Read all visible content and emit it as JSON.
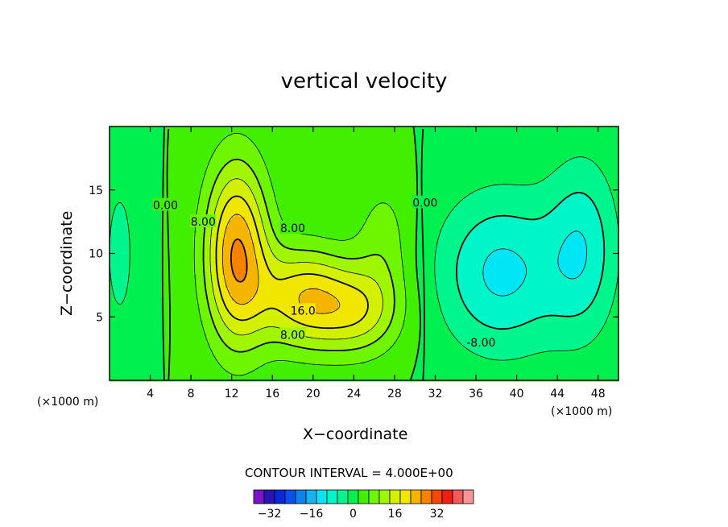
{
  "chart_data": {
    "type": "heatmap",
    "title": "vertical velocity",
    "xlabel": "X−coordinate",
    "ylabel": "Z−coordinate",
    "x_unit": "(×1000 m)",
    "x_unit_right": "(×1000 m)",
    "xlim": [
      0,
      50
    ],
    "ylim": [
      0,
      20
    ],
    "x_ticks": [
      4,
      8,
      12,
      16,
      20,
      24,
      28,
      32,
      36,
      40,
      44,
      48
    ],
    "y_ticks": [
      5,
      10,
      15
    ],
    "contour_interval_label": "CONTOUR INTERVAL = 4.000E+00",
    "contour_labels": [
      {
        "text": "0.00",
        "x": 5.5,
        "z": 13.8
      },
      {
        "text": "8.00",
        "x": 9.2,
        "z": 12.5
      },
      {
        "text": "8.00",
        "x": 18.0,
        "z": 12.0
      },
      {
        "text": "16.0",
        "x": 19.0,
        "z": 5.5
      },
      {
        "text": "8.00",
        "x": 18.0,
        "z": 3.6
      },
      {
        "text": "0.00",
        "x": 31.0,
        "z": 14.0
      },
      {
        "text": "-8.00",
        "x": 36.5,
        "z": 3.0
      }
    ],
    "field_features": [
      {
        "x": 12.5,
        "z": 10.0,
        "sx": 2.2,
        "sz": 5.0,
        "amp": 24
      },
      {
        "x": 19.0,
        "z": 6.5,
        "sx": 3.2,
        "sz": 2.8,
        "amp": 18
      },
      {
        "x": 24.5,
        "z": 5.5,
        "sx": 3.0,
        "sz": 2.5,
        "amp": 13
      },
      {
        "x": 27.0,
        "z": 11.0,
        "sx": 2.0,
        "sz": 3.5,
        "amp": 6
      },
      {
        "x": 38.5,
        "z": 8.5,
        "sx": 4.5,
        "sz": 4.5,
        "amp": -13
      },
      {
        "x": 46.5,
        "z": 10.5,
        "sx": 2.5,
        "sz": 5.0,
        "amp": -10
      },
      {
        "x": 1.0,
        "z": 10.0,
        "sx": 1.5,
        "sz": 6.0,
        "amp": -5
      }
    ],
    "colorbar": {
      "ticks": [
        -32,
        -16,
        0,
        16,
        32
      ],
      "levels": [
        -36,
        -32,
        -28,
        -24,
        -20,
        -16,
        -12,
        -8,
        -4,
        0,
        4,
        8,
        12,
        16,
        20,
        24,
        28,
        32,
        36
      ],
      "colors": [
        "#7a14c8",
        "#2a14b4",
        "#0a28d8",
        "#0a50f0",
        "#0a82f0",
        "#14b4f0",
        "#00e6f5",
        "#00f5c8",
        "#00f58c",
        "#00f050",
        "#40f000",
        "#6ef500",
        "#a0f500",
        "#d2f000",
        "#f0e600",
        "#f5b400",
        "#f58200",
        "#f54600",
        "#f01e14",
        "#f05a5a",
        "#f59696"
      ]
    }
  }
}
